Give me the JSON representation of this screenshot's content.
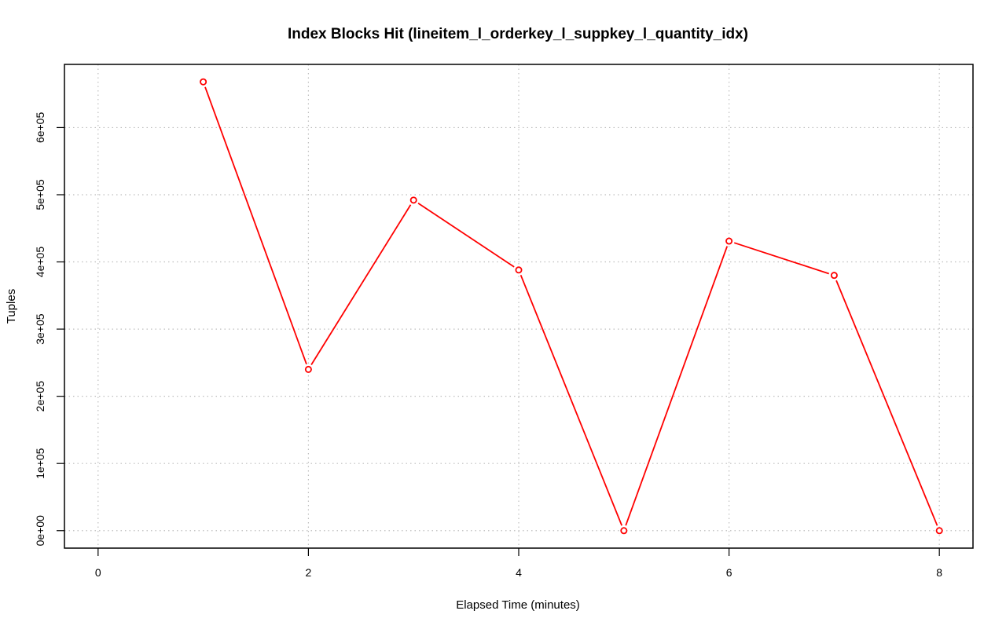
{
  "chart_data": {
    "type": "line",
    "title": "Index Blocks Hit (lineitem_l_orderkey_l_suppkey_l_quantity_idx)",
    "xlabel": "Elapsed Time (minutes)",
    "ylabel": "Tuples",
    "x": [
      1,
      2,
      3,
      4,
      5,
      6,
      7,
      8
    ],
    "series": [
      {
        "values": [
          668000,
          240000,
          492000,
          388000,
          0,
          431000,
          380000,
          0
        ],
        "color": "#ff0000"
      }
    ],
    "xlim": [
      -0.32,
      8.32
    ],
    "ylim": [
      -26000,
      694000
    ],
    "xticks": [
      0,
      2,
      4,
      6,
      8
    ],
    "xtick_labels": [
      "0",
      "2",
      "4",
      "6",
      "8"
    ],
    "yticks": [
      0,
      100000,
      200000,
      300000,
      400000,
      500000,
      600000
    ],
    "ytick_labels": [
      "0e+00",
      "1e+05",
      "2e+05",
      "3e+05",
      "4e+05",
      "5e+05",
      "6e+05"
    ],
    "grid": true,
    "grid_color": "#bebebe",
    "marker": "open-circle"
  }
}
